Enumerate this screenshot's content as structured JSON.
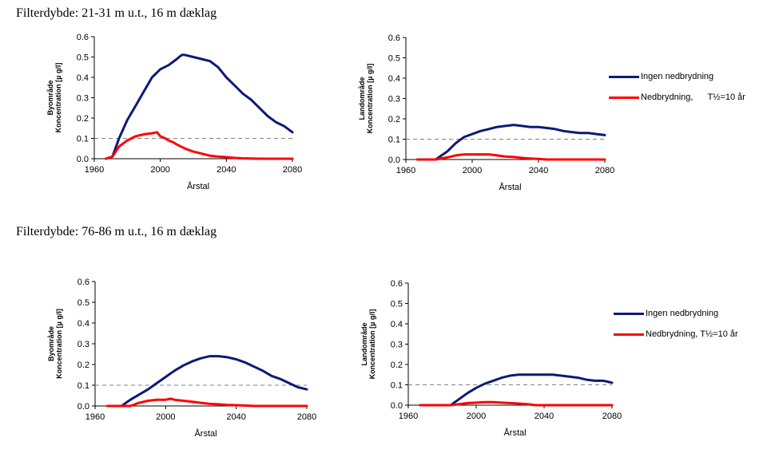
{
  "sections": [
    {
      "title": "Filterdybde: 21-31 m u.t., 16 m dæklag"
    },
    {
      "title": "Filterdybde: 76-86 m u.t., 16 m dæklag"
    }
  ],
  "colors": {
    "ingen": "#0b1a78",
    "ned": "#ff0000",
    "threshold": "#808080"
  },
  "legends": [
    {
      "items": [
        {
          "label": "Ingen nedbrydning",
          "color": "#0b1a78"
        },
        {
          "label": "Nedbrydning,      T½=10 år",
          "color": "#ff0000"
        }
      ]
    },
    {
      "items": [
        {
          "label": "Ingen nedbrydning",
          "color": "#0b1a78"
        },
        {
          "label": "Nedbrydning, T½=10 år",
          "color": "#ff0000"
        }
      ]
    }
  ],
  "chart_data": [
    {
      "type": "line",
      "xlabel": "Årstal",
      "ylabel": [
        "Byområde",
        "Koncentration [µ g/l]"
      ],
      "xlim": [
        1960,
        2080
      ],
      "ylim": [
        0,
        0.6
      ],
      "xticks": [
        "1960",
        "2000",
        "2040",
        "2080"
      ],
      "yticks": [
        "0.0",
        "0.1",
        "0.2",
        "0.3",
        "0.4",
        "0.5",
        "0.6"
      ],
      "threshold": 0.1,
      "series": [
        {
          "name": "Ingen nedbrydning",
          "x": [
            1967,
            1971,
            1975,
            1980,
            1985,
            1990,
            1995,
            2000,
            2005,
            2010,
            2013,
            2015,
            2020,
            2025,
            2030,
            2035,
            2040,
            2045,
            2050,
            2055,
            2060,
            2065,
            2070,
            2075,
            2080
          ],
          "y": [
            0.0,
            0.01,
            0.1,
            0.19,
            0.26,
            0.33,
            0.4,
            0.44,
            0.46,
            0.49,
            0.51,
            0.51,
            0.5,
            0.49,
            0.48,
            0.45,
            0.4,
            0.36,
            0.32,
            0.29,
            0.25,
            0.21,
            0.18,
            0.16,
            0.13
          ]
        },
        {
          "name": "Nedbrydning,      T½=10 år",
          "x": [
            1967,
            1971,
            1975,
            1980,
            1985,
            1990,
            1995,
            1998,
            2000,
            2003,
            2005,
            2008,
            2010,
            2015,
            2020,
            2025,
            2030,
            2035,
            2040,
            2045,
            2050,
            2060,
            2080
          ],
          "y": [
            0.0,
            0.01,
            0.06,
            0.09,
            0.11,
            0.12,
            0.125,
            0.13,
            0.11,
            0.1,
            0.09,
            0.08,
            0.07,
            0.05,
            0.035,
            0.025,
            0.015,
            0.01,
            0.008,
            0.004,
            0.002,
            0.0,
            0.0
          ]
        }
      ]
    },
    {
      "type": "line",
      "xlabel": "Årstal",
      "ylabel": [
        "Landområde",
        "Koncentration [µ g/l]"
      ],
      "xlim": [
        1960,
        2080
      ],
      "ylim": [
        0,
        0.6
      ],
      "xticks": [
        "1960",
        "2000",
        "2040",
        "2080"
      ],
      "yticks": [
        "0.0",
        "0.1",
        "0.2",
        "0.3",
        "0.4",
        "0.5",
        "0.6"
      ],
      "threshold": 0.1,
      "series": [
        {
          "name": "Ingen nedbrydning",
          "x": [
            1967,
            1978,
            1985,
            1990,
            1995,
            2000,
            2005,
            2010,
            2015,
            2020,
            2025,
            2030,
            2035,
            2040,
            2045,
            2050,
            2055,
            2060,
            2065,
            2070,
            2075,
            2080
          ],
          "y": [
            0.0,
            0.0,
            0.04,
            0.08,
            0.11,
            0.125,
            0.14,
            0.15,
            0.16,
            0.165,
            0.17,
            0.165,
            0.16,
            0.16,
            0.155,
            0.15,
            0.14,
            0.135,
            0.13,
            0.13,
            0.125,
            0.12
          ]
        },
        {
          "name": "Nedbrydning, T½=10 år",
          "x": [
            1967,
            1978,
            1985,
            1990,
            1995,
            2000,
            2005,
            2010,
            2015,
            2020,
            2025,
            2030,
            2035,
            2040,
            2045,
            2080
          ],
          "y": [
            0.0,
            0.0,
            0.01,
            0.02,
            0.025,
            0.025,
            0.025,
            0.025,
            0.02,
            0.015,
            0.012,
            0.008,
            0.005,
            0.003,
            0.0,
            0.0
          ]
        }
      ]
    },
    {
      "type": "line",
      "xlabel": "Årstal",
      "ylabel": [
        "Byområde",
        "Koncentration [µ g/l]"
      ],
      "xlim": [
        1960,
        2080
      ],
      "ylim": [
        0,
        0.6
      ],
      "xticks": [
        "1960",
        "2000",
        "2040",
        "2080"
      ],
      "yticks": [
        "0.0",
        "0.1",
        "0.2",
        "0.3",
        "0.4",
        "0.5",
        "0.6"
      ],
      "threshold": 0.1,
      "series": [
        {
          "name": "Ingen nedbrydning",
          "x": [
            1967,
            1975,
            1980,
            1985,
            1990,
            1995,
            2000,
            2005,
            2010,
            2015,
            2020,
            2025,
            2030,
            2035,
            2040,
            2045,
            2050,
            2055,
            2060,
            2065,
            2070,
            2075,
            2080
          ],
          "y": [
            0.0,
            0.0,
            0.03,
            0.055,
            0.08,
            0.11,
            0.14,
            0.17,
            0.195,
            0.215,
            0.23,
            0.24,
            0.24,
            0.235,
            0.225,
            0.21,
            0.19,
            0.17,
            0.145,
            0.13,
            0.11,
            0.09,
            0.08
          ]
        },
        {
          "name": "Nedbrydning, T½=10 år",
          "x": [
            1967,
            1980,
            1985,
            1990,
            1995,
            2000,
            2003,
            2005,
            2010,
            2015,
            2020,
            2025,
            2030,
            2035,
            2040,
            2045,
            2050,
            2080
          ],
          "y": [
            0.0,
            0.0,
            0.015,
            0.025,
            0.03,
            0.03,
            0.035,
            0.03,
            0.025,
            0.02,
            0.015,
            0.01,
            0.008,
            0.005,
            0.004,
            0.002,
            0.0,
            0.0
          ]
        }
      ]
    },
    {
      "type": "line",
      "xlabel": "Årstal",
      "ylabel": [
        "Landområde",
        "Koncentration [µ g/l]"
      ],
      "xlim": [
        1960,
        2080
      ],
      "ylim": [
        0,
        0.6
      ],
      "xticks": [
        "1960",
        "2000",
        "2040",
        "2080"
      ],
      "yticks": [
        "0.0",
        "0.1",
        "0.2",
        "0.3",
        "0.4",
        "0.5",
        "0.6"
      ],
      "threshold": 0.1,
      "series": [
        {
          "name": "Ingen nedbrydning",
          "x": [
            1967,
            1985,
            1990,
            1995,
            2000,
            2005,
            2010,
            2015,
            2020,
            2025,
            2030,
            2035,
            2040,
            2045,
            2050,
            2055,
            2060,
            2065,
            2070,
            2075,
            2080
          ],
          "y": [
            0.0,
            0.0,
            0.03,
            0.06,
            0.085,
            0.105,
            0.12,
            0.135,
            0.145,
            0.15,
            0.15,
            0.15,
            0.15,
            0.15,
            0.145,
            0.14,
            0.135,
            0.125,
            0.12,
            0.12,
            0.11
          ]
        },
        {
          "name": "Nedbrydning, T½=10 år",
          "x": [
            1967,
            1985,
            1990,
            1995,
            2000,
            2005,
            2010,
            2015,
            2020,
            2025,
            2030,
            2035,
            2080
          ],
          "y": [
            0.0,
            0.0,
            0.005,
            0.01,
            0.012,
            0.015,
            0.015,
            0.012,
            0.01,
            0.008,
            0.005,
            0.0,
            0.0
          ]
        }
      ]
    }
  ]
}
